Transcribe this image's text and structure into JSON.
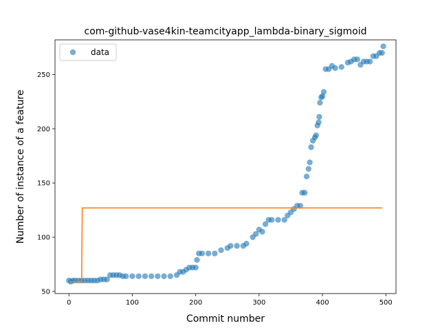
{
  "chart_data": {
    "type": "scatter",
    "title": "com-github-vase4kin-teamcityapp_lambda-binary_sigmoid",
    "xlabel": "Commit number",
    "ylabel": "Number of instance of a feature",
    "xlim": [
      -22,
      516
    ],
    "ylim": [
      48,
      282
    ],
    "xticks": [
      0,
      100,
      200,
      300,
      400,
      500
    ],
    "yticks": [
      50,
      100,
      150,
      200,
      250
    ],
    "grid": false,
    "legend_position": "top-left",
    "colors": {
      "data": "#1f77b4",
      "fit": "#ff7f0e"
    },
    "series": [
      {
        "name": "data",
        "kind": "scatter",
        "points": [
          [
            0,
            60
          ],
          [
            3,
            59
          ],
          [
            6,
            60
          ],
          [
            10,
            60
          ],
          [
            15,
            60
          ],
          [
            20,
            60
          ],
          [
            25,
            60
          ],
          [
            30,
            60
          ],
          [
            35,
            60
          ],
          [
            40,
            60
          ],
          [
            45,
            60
          ],
          [
            50,
            61
          ],
          [
            55,
            61
          ],
          [
            60,
            61
          ],
          [
            65,
            65
          ],
          [
            70,
            65
          ],
          [
            75,
            65
          ],
          [
            80,
            65
          ],
          [
            85,
            64
          ],
          [
            90,
            64
          ],
          [
            100,
            64
          ],
          [
            110,
            64
          ],
          [
            120,
            64
          ],
          [
            130,
            64
          ],
          [
            140,
            64
          ],
          [
            150,
            64
          ],
          [
            160,
            64
          ],
          [
            170,
            65
          ],
          [
            175,
            68
          ],
          [
            180,
            68
          ],
          [
            185,
            70
          ],
          [
            190,
            72
          ],
          [
            195,
            72
          ],
          [
            200,
            72
          ],
          [
            202,
            79
          ],
          [
            205,
            85
          ],
          [
            210,
            85
          ],
          [
            220,
            85
          ],
          [
            230,
            85
          ],
          [
            240,
            88
          ],
          [
            250,
            90
          ],
          [
            255,
            92
          ],
          [
            265,
            92
          ],
          [
            275,
            92
          ],
          [
            280,
            94
          ],
          [
            290,
            100
          ],
          [
            295,
            103
          ],
          [
            300,
            107
          ],
          [
            305,
            105
          ],
          [
            310,
            112
          ],
          [
            315,
            116
          ],
          [
            320,
            116
          ],
          [
            330,
            116
          ],
          [
            340,
            116
          ],
          [
            345,
            120
          ],
          [
            350,
            123
          ],
          [
            355,
            126
          ],
          [
            360,
            129
          ],
          [
            365,
            129
          ],
          [
            368,
            141
          ],
          [
            372,
            141
          ],
          [
            375,
            156
          ],
          [
            378,
            163
          ],
          [
            380,
            169
          ],
          [
            382,
            183
          ],
          [
            385,
            189
          ],
          [
            388,
            192
          ],
          [
            390,
            194
          ],
          [
            392,
            203
          ],
          [
            394,
            206
          ],
          [
            395,
            211
          ],
          [
            396,
            224
          ],
          [
            398,
            229
          ],
          [
            400,
            230
          ],
          [
            402,
            234
          ],
          [
            405,
            255
          ],
          [
            410,
            255
          ],
          [
            415,
            258
          ],
          [
            420,
            256
          ],
          [
            430,
            257
          ],
          [
            440,
            261
          ],
          [
            445,
            262
          ],
          [
            450,
            264
          ],
          [
            455,
            264
          ],
          [
            460,
            259
          ],
          [
            465,
            262
          ],
          [
            470,
            262
          ],
          [
            475,
            262
          ],
          [
            480,
            267
          ],
          [
            485,
            267
          ],
          [
            490,
            270
          ],
          [
            494,
            270
          ],
          [
            496,
            276
          ]
        ]
      },
      {
        "name": "",
        "kind": "line",
        "points": [
          [
            0,
            59
          ],
          [
            20,
            59
          ],
          [
            21,
            127
          ],
          [
            100,
            127
          ],
          [
            200,
            127
          ],
          [
            300,
            127
          ],
          [
            400,
            127
          ],
          [
            494,
            127
          ]
        ]
      }
    ]
  }
}
